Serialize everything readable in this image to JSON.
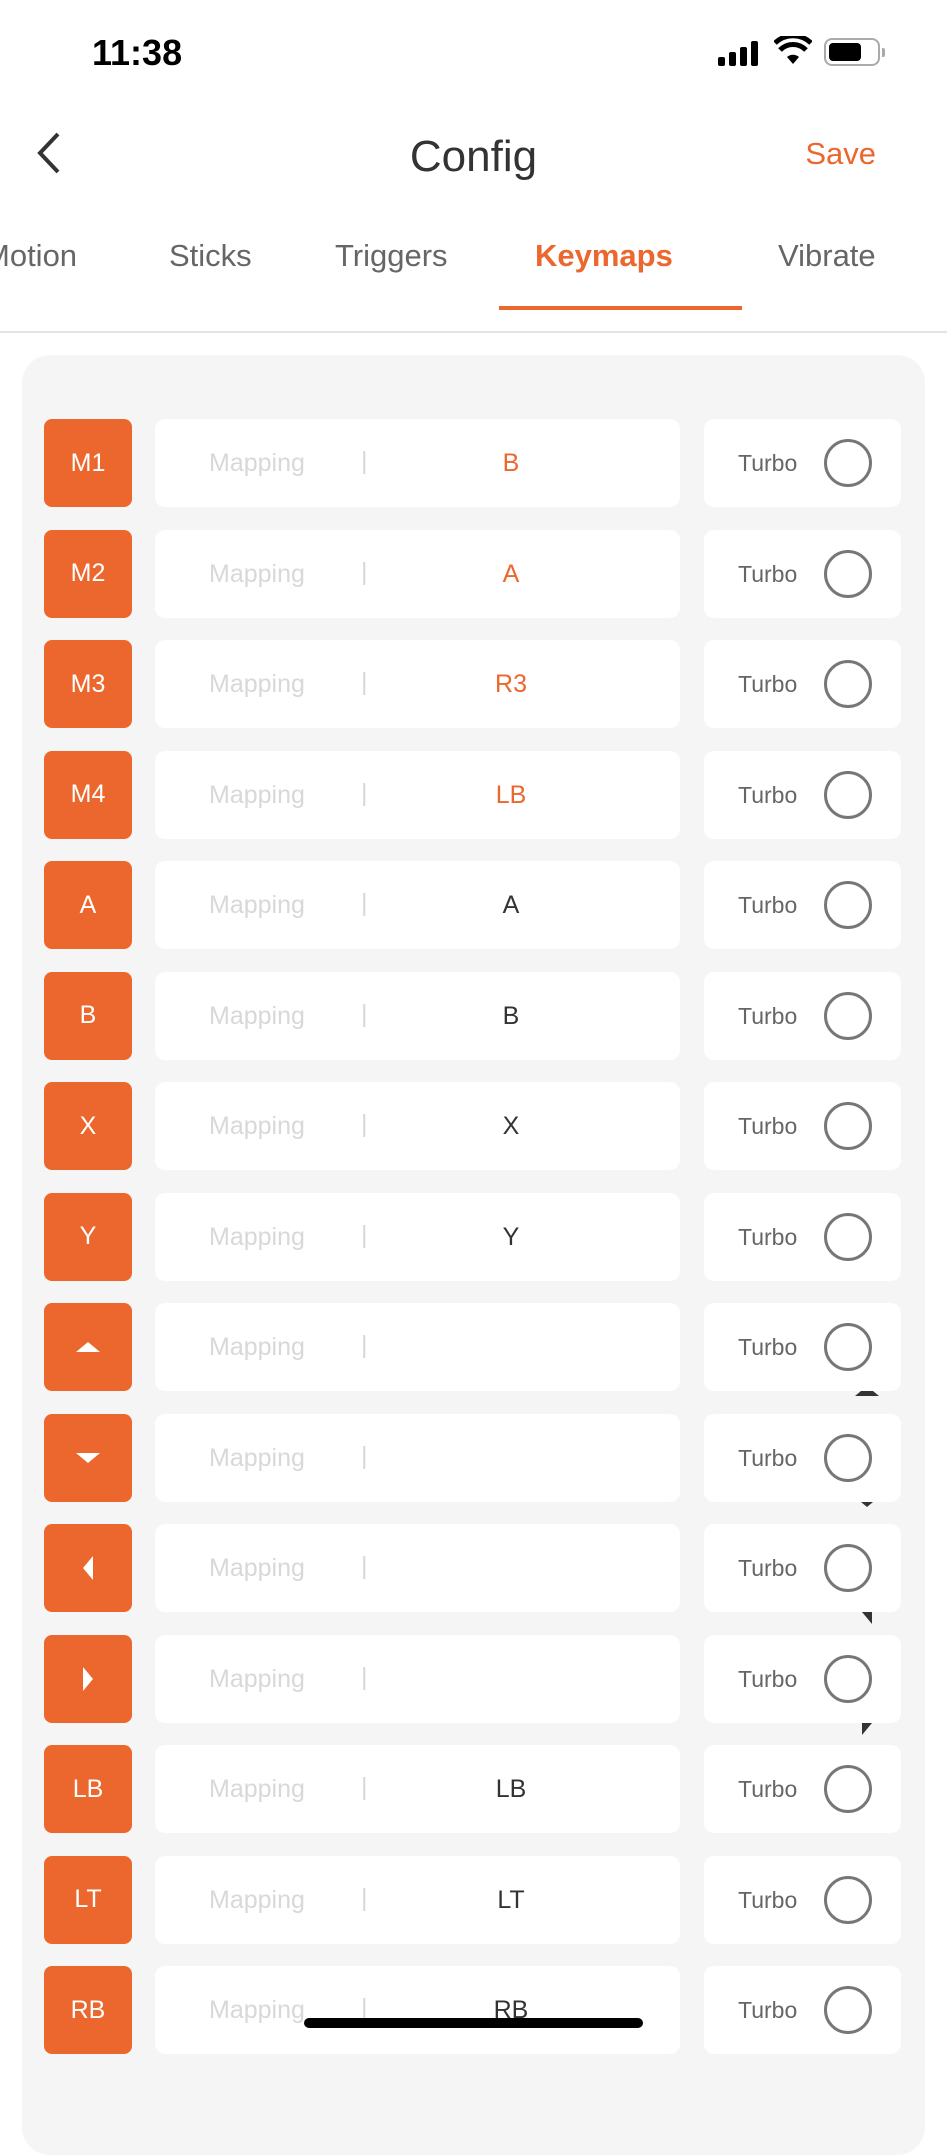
{
  "status_bar": {
    "time": "11:38"
  },
  "nav": {
    "title": "Config",
    "save_label": "Save"
  },
  "tabs": [
    {
      "label": "Motion",
      "active": false
    },
    {
      "label": "Sticks",
      "active": false
    },
    {
      "label": "Triggers",
      "active": false
    },
    {
      "label": "Keymaps",
      "active": true
    },
    {
      "label": "Vibrate",
      "active": false
    }
  ],
  "accent_color": "#ec672d",
  "keymaps": {
    "mapping_label": "Mapping",
    "separator": "|",
    "turbo_label": "Turbo",
    "rows": [
      {
        "key": "M1",
        "value": "B",
        "highlight": true,
        "turbo": false
      },
      {
        "key": "M2",
        "value": "A",
        "highlight": true,
        "turbo": false
      },
      {
        "key": "M3",
        "value": "R3",
        "highlight": true,
        "turbo": false
      },
      {
        "key": "M4",
        "value": "LB",
        "highlight": true,
        "turbo": false
      },
      {
        "key": "A",
        "value": "A",
        "highlight": false,
        "turbo": false
      },
      {
        "key": "B",
        "value": "B",
        "highlight": false,
        "turbo": false
      },
      {
        "key": "X",
        "value": "X",
        "highlight": false,
        "turbo": false
      },
      {
        "key": "Y",
        "value": "Y",
        "highlight": false,
        "turbo": false
      },
      {
        "key_icon": "dpad-up",
        "value_icon": "dpad-up",
        "highlight": false,
        "turbo": false
      },
      {
        "key_icon": "dpad-down",
        "value_icon": "dpad-down",
        "highlight": false,
        "turbo": false
      },
      {
        "key_icon": "dpad-left",
        "value_icon": "dpad-left",
        "highlight": false,
        "turbo": false
      },
      {
        "key_icon": "dpad-right",
        "value_icon": "dpad-right",
        "highlight": false,
        "turbo": false
      },
      {
        "key": "LB",
        "value": "LB",
        "highlight": false,
        "turbo": false
      },
      {
        "key": "LT",
        "value": "LT",
        "highlight": false,
        "turbo": false
      },
      {
        "key": "RB",
        "value": "RB",
        "highlight": false,
        "turbo": false
      }
    ]
  }
}
